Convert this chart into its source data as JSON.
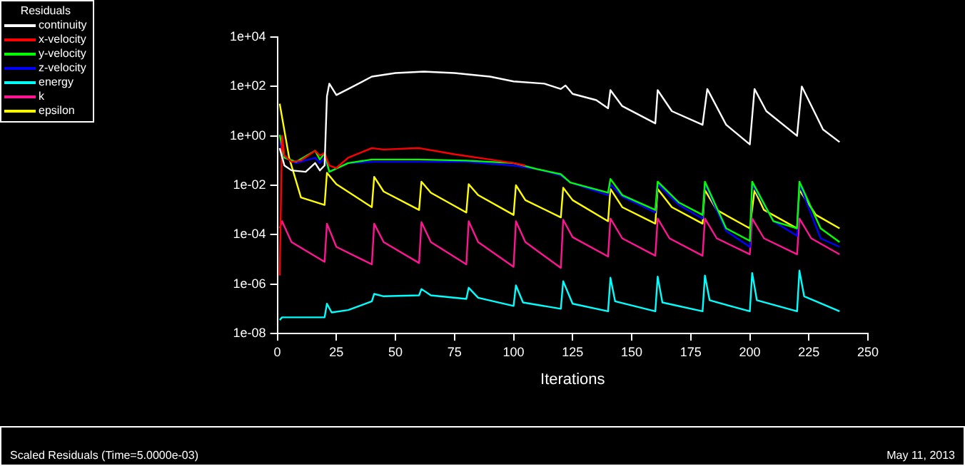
{
  "chart_data": {
    "type": "line",
    "xlabel": "Iterations",
    "legend_title": "Residuals",
    "legend": "top left",
    "log": "y",
    "grid": false,
    "marker": "none",
    "xlim": [
      0,
      250
    ],
    "xticks": [
      0,
      25,
      50,
      75,
      100,
      125,
      150,
      175,
      200,
      225,
      250
    ],
    "ylim": [
      1e-08,
      10000.0
    ],
    "yticks": [
      {
        "value": 1e-08,
        "label": "1e-08"
      },
      {
        "value": 1e-06,
        "label": "1e-06"
      },
      {
        "value": 0.0001,
        "label": "1e-04"
      },
      {
        "value": 0.01,
        "label": "1e-02"
      },
      {
        "value": 1,
        "label": "1e+00"
      },
      {
        "value": 100,
        "label": "1e+02"
      },
      {
        "value": 10000.0,
        "label": "1e+04"
      }
    ],
    "annotations": [
      "Scaled Residuals (Time=5.0000e-03)",
      "May 11, 2013"
    ],
    "series": [
      {
        "name": "continuity",
        "color": "#ffffff",
        "x": [
          1,
          3,
          6,
          12,
          16,
          18,
          20,
          21,
          22,
          25,
          30,
          40,
          50,
          62,
          75,
          90,
          100,
          113,
          120,
          122,
          125,
          135,
          140,
          141,
          146,
          160,
          161,
          167,
          180,
          182,
          190,
          200,
          202,
          207,
          220,
          222,
          231,
          238
        ],
        "values": [
          0.32,
          0.063,
          0.04,
          0.035,
          0.079,
          0.04,
          0.063,
          40,
          130,
          45,
          79,
          250,
          350,
          400,
          350,
          250,
          160,
          130,
          79,
          110,
          50,
          28,
          13,
          71,
          16,
          3.2,
          71,
          10,
          2.8,
          79,
          2.8,
          0.45,
          79,
          10,
          1,
          100,
          1.8,
          0.56
        ]
      },
      {
        "name": "x-velocity",
        "color": "#ff0000",
        "x": [
          1,
          2,
          3,
          6,
          10,
          16,
          18,
          20,
          22,
          25,
          30,
          40,
          45,
          60,
          75,
          90,
          100,
          105
        ],
        "values": [
          2.2e-06,
          1,
          0.16,
          0.089,
          0.1,
          0.25,
          0.16,
          0.2,
          0.063,
          0.05,
          0.13,
          0.32,
          0.28,
          0.32,
          0.18,
          0.11,
          0.079,
          0.063
        ]
      },
      {
        "name": "y-velocity",
        "color": "#00ff00",
        "x": [
          1,
          3,
          8,
          16,
          18,
          20,
          22,
          30,
          40,
          60,
          80,
          100,
          110,
          120,
          124,
          140,
          141,
          146,
          160,
          161,
          170,
          180,
          181,
          190,
          200,
          201,
          210,
          220,
          221,
          230,
          238
        ],
        "values": [
          1.1,
          0.13,
          0.089,
          0.25,
          0.11,
          0.2,
          0.035,
          0.079,
          0.11,
          0.11,
          0.1,
          0.079,
          0.045,
          0.028,
          0.013,
          0.005,
          0.018,
          0.004,
          0.001,
          0.014,
          0.002,
          0.00063,
          0.014,
          0.00018,
          5.6e-05,
          0.014,
          0.00035,
          0.00018,
          0.014,
          0.00018,
          5e-05
        ]
      },
      {
        "name": "z-velocity",
        "color": "#0000ff",
        "x": [
          1,
          3,
          8,
          16,
          18,
          20,
          22,
          30,
          40,
          60,
          80,
          100,
          110,
          120,
          124,
          140,
          141,
          146,
          160,
          161,
          170,
          180,
          181,
          190,
          200,
          201,
          210,
          220,
          221,
          230,
          238
        ],
        "values": [
          0.56,
          0.13,
          0.079,
          0.13,
          0.079,
          0.13,
          0.035,
          0.079,
          0.089,
          0.089,
          0.089,
          0.063,
          0.045,
          0.025,
          0.013,
          0.004,
          0.011,
          0.0035,
          0.00079,
          0.011,
          0.0016,
          0.00045,
          0.011,
          0.00014,
          3.2e-05,
          0.011,
          0.00035,
          8.9e-05,
          0.011,
          7.1e-05,
          3.2e-05
        ]
      },
      {
        "name": "energy",
        "color": "#00ffff",
        "x": [
          1,
          2,
          20,
          21,
          23,
          30,
          40,
          41,
          45,
          60,
          61,
          65,
          80,
          81,
          85,
          100,
          101,
          104,
          120,
          121,
          125,
          140,
          141,
          143,
          160,
          161,
          163,
          180,
          181,
          183,
          200,
          201,
          203,
          220,
          221,
          223,
          238
        ],
        "values": [
          3.5e-08,
          4.5e-08,
          4.5e-08,
          1.6e-07,
          7.1e-08,
          8.9e-08,
          2e-07,
          4e-07,
          3.2e-07,
          3.5e-07,
          6.3e-07,
          3.5e-07,
          2.5e-07,
          7.1e-07,
          2.8e-07,
          1.3e-07,
          8.9e-07,
          1.8e-07,
          1e-07,
          1.3e-06,
          1.6e-07,
          7.9e-08,
          1.8e-06,
          2e-07,
          7.9e-08,
          2e-06,
          1.8e-07,
          7.9e-08,
          2.2e-06,
          2.2e-07,
          7.9e-08,
          2.8e-06,
          2.2e-07,
          7.9e-08,
          3.5e-06,
          3.2e-07,
          7.9e-08
        ]
      },
      {
        "name": "k",
        "color": "#ff1493",
        "x": [
          1,
          2,
          6,
          20,
          21,
          25,
          40,
          41,
          45,
          60,
          61,
          65,
          80,
          81,
          85,
          100,
          101,
          105,
          120,
          121,
          125,
          140,
          141,
          146,
          160,
          161,
          166,
          180,
          181,
          186,
          200,
          201,
          206,
          220,
          221,
          226,
          238
        ],
        "values": [
          0.00018,
          0.00035,
          5e-05,
          7.9e-06,
          0.00028,
          3.2e-05,
          6.3e-06,
          0.00028,
          5e-05,
          7.1e-06,
          0.00032,
          5e-05,
          6.3e-06,
          0.00035,
          5e-05,
          5e-06,
          0.00035,
          5e-05,
          4.5e-06,
          0.0004,
          7.9e-05,
          1.3e-05,
          0.00045,
          7.1e-05,
          1.4e-05,
          0.00045,
          7.1e-05,
          1.4e-05,
          0.00045,
          7.1e-05,
          1.6e-05,
          0.00045,
          7.1e-05,
          1.6e-05,
          0.00045,
          7.1e-05,
          1.6e-05
        ]
      },
      {
        "name": "epsilon",
        "color": "#ffff00",
        "x": [
          1,
          5,
          10,
          20,
          21,
          25,
          40,
          41,
          45,
          60,
          61,
          65,
          80,
          81,
          85,
          100,
          101,
          105,
          120,
          121,
          125,
          140,
          141,
          146,
          160,
          161,
          167,
          180,
          181,
          186,
          200,
          202,
          206,
          220,
          221,
          228,
          238
        ],
        "values": [
          20,
          0.13,
          0.0032,
          0.0016,
          0.032,
          0.011,
          0.0013,
          0.022,
          0.0056,
          0.001,
          0.014,
          0.005,
          0.00079,
          0.011,
          0.004,
          0.00063,
          0.01,
          0.0025,
          0.0005,
          0.0079,
          0.0025,
          0.00035,
          0.0071,
          0.0013,
          0.00028,
          0.0071,
          0.0013,
          0.00028,
          0.0063,
          0.001,
          0.00018,
          0.0063,
          0.001,
          0.00018,
          0.0063,
          0.00063,
          0.00018
        ]
      }
    ]
  }
}
